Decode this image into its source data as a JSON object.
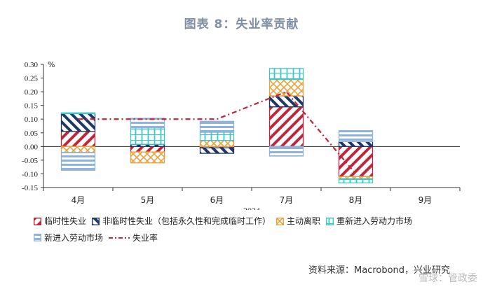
{
  "title": "图表 8：失业率贡献",
  "source": "资料来源：Macrobond，兴业研究",
  "watermark": "雪球：管政委",
  "colors": {
    "temp": "#c0263b",
    "perm": "#1f3864",
    "quit": "#e6a23c",
    "reentrant": "#3cc7c7",
    "new": "#8fb3db",
    "rate": "#c0263b"
  },
  "chart_data": {
    "type": "bar",
    "stacked": true,
    "xlabel": "2024",
    "ylabel": "%",
    "ylim": [
      -0.15,
      0.3
    ],
    "yticks": [
      "0.30",
      "0.25",
      "0.20",
      "0.15",
      "0.10",
      "0.05",
      "0.00",
      "-0.05",
      "-0.10",
      "-0.15"
    ],
    "categories": [
      "4月",
      "5月",
      "6月",
      "7月",
      "8月",
      "9月"
    ],
    "series": [
      {
        "name": "临时性失业",
        "key": "temp",
        "values": [
          0.055,
          -0.02,
          -0.005,
          0.145,
          -0.11,
          null
        ]
      },
      {
        "name": "非临时性失业（包括永久性和完成临时工作）",
        "key": "perm",
        "values": [
          0.065,
          0.008,
          -0.02,
          0.04,
          0.018,
          null
        ]
      },
      {
        "name": "主动离职",
        "key": "quit",
        "values": [
          -0.022,
          -0.04,
          0.022,
          0.06,
          -0.008,
          null
        ]
      },
      {
        "name": "重新进入劳动力市场",
        "key": "reentrant",
        "values": [
          0.003,
          0.06,
          0.03,
          0.04,
          -0.015,
          null
        ]
      },
      {
        "name": "新进入劳动市场",
        "key": "new",
        "values": [
          -0.065,
          0.035,
          0.04,
          -0.035,
          0.04,
          null
        ]
      }
    ],
    "line": {
      "name": "失业率",
      "values": [
        0.1,
        0.1,
        0.1,
        0.2,
        -0.1,
        null
      ]
    },
    "legend_position": "bottom"
  }
}
